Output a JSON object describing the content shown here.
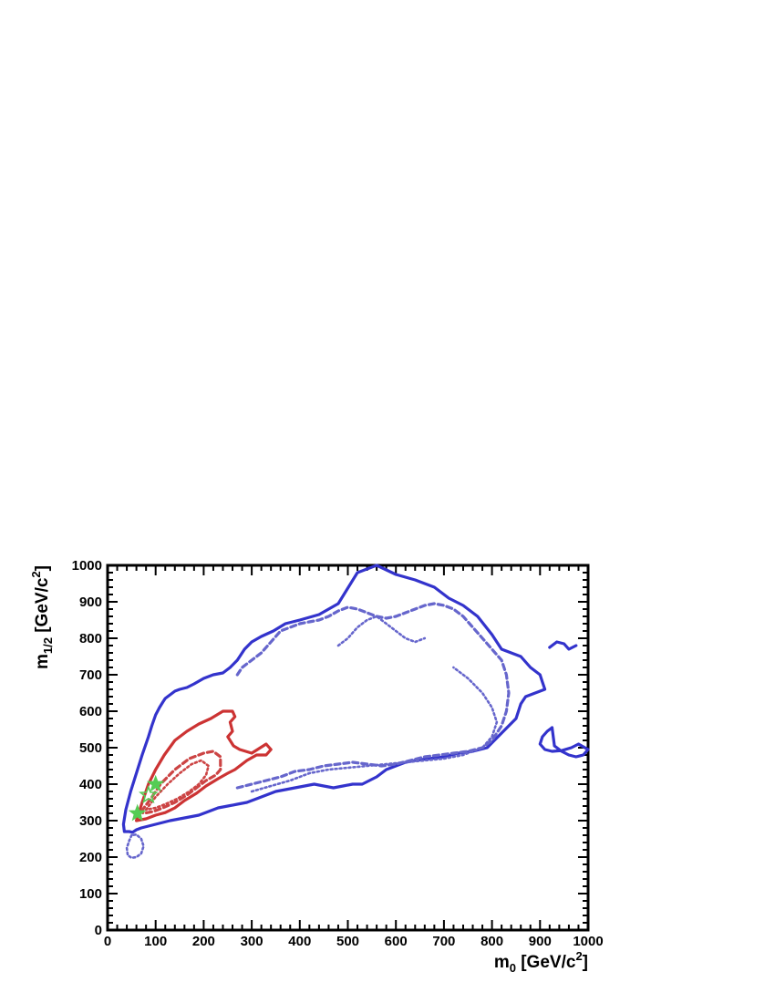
{
  "chart_data": {
    "type": "line",
    "title": "",
    "xlabel": {
      "main": "m",
      "sub": "0",
      "unit": " [GeV/c",
      "sup": "2",
      "close": "]"
    },
    "ylabel": {
      "main": "m",
      "sub": "1/2",
      "unit": " [GeV/c",
      "sup": "2",
      "close": "]"
    },
    "xlim": [
      0,
      1000
    ],
    "ylim": [
      0,
      1000
    ],
    "xticks": [
      "0",
      "100",
      "200",
      "300",
      "400",
      "500",
      "600",
      "700",
      "800",
      "900",
      "1000"
    ],
    "yticks": [
      "0",
      "100",
      "200",
      "300",
      "400",
      "500",
      "600",
      "700",
      "800",
      "900",
      "1000"
    ],
    "grid": false,
    "legend": "none",
    "series": [
      {
        "style": "solid",
        "color": "#3333cc",
        "x": [
          45,
          35,
          33,
          38,
          48,
          60,
          72,
          85,
          92,
          100,
          108,
          115,
          120,
          130,
          140,
          150,
          165,
          180,
          200,
          220,
          240,
          255,
          270,
          285,
          300,
          320,
          345,
          370,
          400,
          440,
          480,
          520,
          560,
          600,
          640,
          680,
          710,
          740,
          770,
          800,
          820,
          860,
          880,
          900,
          905,
          910,
          890,
          870,
          860,
          850,
          820,
          790,
          760,
          730,
          700,
          670,
          640,
          620,
          600,
          580,
          570,
          560,
          545,
          530,
          510,
          490,
          470,
          450,
          430,
          410,
          390,
          370,
          350,
          330,
          310,
          290,
          270,
          250,
          230,
          210,
          190,
          170,
          150,
          130,
          115,
          100,
          85,
          70,
          60,
          52,
          45
        ],
        "y": [
          270,
          270,
          290,
          330,
          380,
          430,
          480,
          530,
          560,
          590,
          610,
          625,
          635,
          645,
          655,
          660,
          665,
          675,
          690,
          700,
          705,
          720,
          740,
          770,
          790,
          805,
          820,
          840,
          850,
          865,
          895,
          980,
          1000,
          975,
          960,
          940,
          910,
          890,
          860,
          810,
          770,
          750,
          720,
          700,
          680,
          660,
          650,
          640,
          620,
          580,
          540,
          500,
          490,
          485,
          475,
          470,
          465,
          460,
          450,
          440,
          430,
          420,
          410,
          400,
          400,
          395,
          390,
          395,
          400,
          395,
          390,
          385,
          380,
          370,
          360,
          350,
          345,
          340,
          335,
          325,
          315,
          310,
          305,
          300,
          295,
          290,
          285,
          280,
          275,
          268,
          270
        ]
      },
      {
        "style": "solid",
        "color": "#3333cc",
        "x": [
          925,
          915,
          905,
          900,
          910,
          925,
          945,
          965,
          980,
          1000,
          990,
          975,
          960,
          945,
          930,
          925
        ],
        "y": [
          555,
          545,
          530,
          510,
          495,
          490,
          492,
          500,
          510,
          495,
          480,
          475,
          480,
          490,
          505,
          555
        ]
      },
      {
        "style": "solid",
        "color": "#3333cc",
        "x": [
          920,
          935,
          950,
          960,
          975
        ],
        "y": [
          775,
          790,
          785,
          770,
          780
        ]
      },
      {
        "style": "dashed",
        "color": "#6666cc",
        "x": [
          270,
          300,
          330,
          360,
          390,
          420,
          450,
          480,
          510,
          540,
          570,
          600,
          630,
          660,
          690,
          720,
          750,
          780,
          800,
          820,
          830,
          835,
          830,
          820,
          800,
          780,
          760,
          740,
          720,
          700,
          680,
          660,
          640,
          620,
          600,
          580,
          560,
          540,
          520,
          500,
          480,
          460,
          440,
          420,
          400,
          380,
          360,
          340,
          320,
          300,
          280,
          270
        ],
        "y": [
          390,
          400,
          410,
          420,
          435,
          440,
          450,
          455,
          460,
          455,
          450,
          455,
          465,
          475,
          480,
          485,
          490,
          500,
          520,
          560,
          600,
          650,
          700,
          740,
          770,
          800,
          830,
          860,
          880,
          890,
          895,
          890,
          880,
          870,
          860,
          855,
          860,
          870,
          880,
          885,
          875,
          860,
          850,
          845,
          840,
          830,
          820,
          790,
          760,
          740,
          720,
          700
        ]
      },
      {
        "style": "dotted",
        "color": "#6666cc",
        "x": [
          50,
          45,
          40,
          42,
          50,
          60,
          70,
          75,
          70,
          60,
          50
        ],
        "y": [
          260,
          245,
          225,
          205,
          198,
          200,
          210,
          230,
          250,
          262,
          260
        ]
      },
      {
        "style": "dotted",
        "color": "#6666cc",
        "x": [
          300,
          340,
          380,
          420,
          460,
          500,
          540,
          580,
          620,
          660,
          700,
          740,
          780,
          800,
          810,
          800,
          780,
          750,
          720
        ],
        "y": [
          380,
          395,
          410,
          430,
          440,
          445,
          450,
          455,
          460,
          465,
          470,
          480,
          500,
          530,
          570,
          610,
          650,
          690,
          720
        ]
      },
      {
        "style": "dotted",
        "color": "#6666cc",
        "x": [
          480,
          500,
          520,
          540,
          560,
          580,
          600,
          620,
          640,
          660
        ],
        "y": [
          780,
          800,
          830,
          850,
          860,
          840,
          820,
          800,
          790,
          800
        ]
      },
      {
        "style": "solid",
        "color": "#cc3333",
        "x": [
          60,
          72,
          85,
          100,
          118,
          140,
          165,
          190,
          215,
          240,
          260,
          265,
          255,
          260,
          250,
          262,
          275,
          300,
          330,
          340,
          330,
          310,
          290,
          265,
          250,
          230,
          205,
          185,
          160,
          140,
          120,
          100,
          80,
          60
        ],
        "y": [
          300,
          350,
          400,
          440,
          480,
          520,
          545,
          565,
          580,
          600,
          600,
          585,
          570,
          545,
          530,
          505,
          495,
          485,
          510,
          495,
          480,
          480,
          465,
          440,
          430,
          415,
          395,
          375,
          355,
          335,
          322,
          315,
          305,
          300
        ]
      },
      {
        "style": "dashed",
        "color": "#cc4444",
        "x": [
          70,
          90,
          110,
          140,
          170,
          200,
          220,
          235,
          235,
          225,
          205,
          190,
          165,
          140,
          115,
          95,
          75,
          70
        ],
        "y": [
          325,
          360,
          400,
          440,
          470,
          485,
          490,
          475,
          440,
          425,
          410,
          395,
          370,
          350,
          335,
          325,
          320,
          325
        ]
      },
      {
        "style": "dotted",
        "color": "#cc4444",
        "x": [
          80,
          100,
          125,
          150,
          175,
          195,
          210,
          205,
          190,
          170,
          145,
          120,
          100,
          80
        ],
        "y": [
          330,
          365,
          400,
          430,
          455,
          465,
          450,
          425,
          400,
          380,
          360,
          345,
          335,
          330
        ]
      }
    ],
    "markers": [
      {
        "shape": "star",
        "filled": true,
        "color": "#55cc55",
        "x": 100,
        "y": 400
      },
      {
        "shape": "star",
        "filled": false,
        "color": "#55cc55",
        "x": 85,
        "y": 370
      },
      {
        "shape": "star",
        "filled": true,
        "color": "#55cc55",
        "x": 62,
        "y": 320
      }
    ]
  }
}
